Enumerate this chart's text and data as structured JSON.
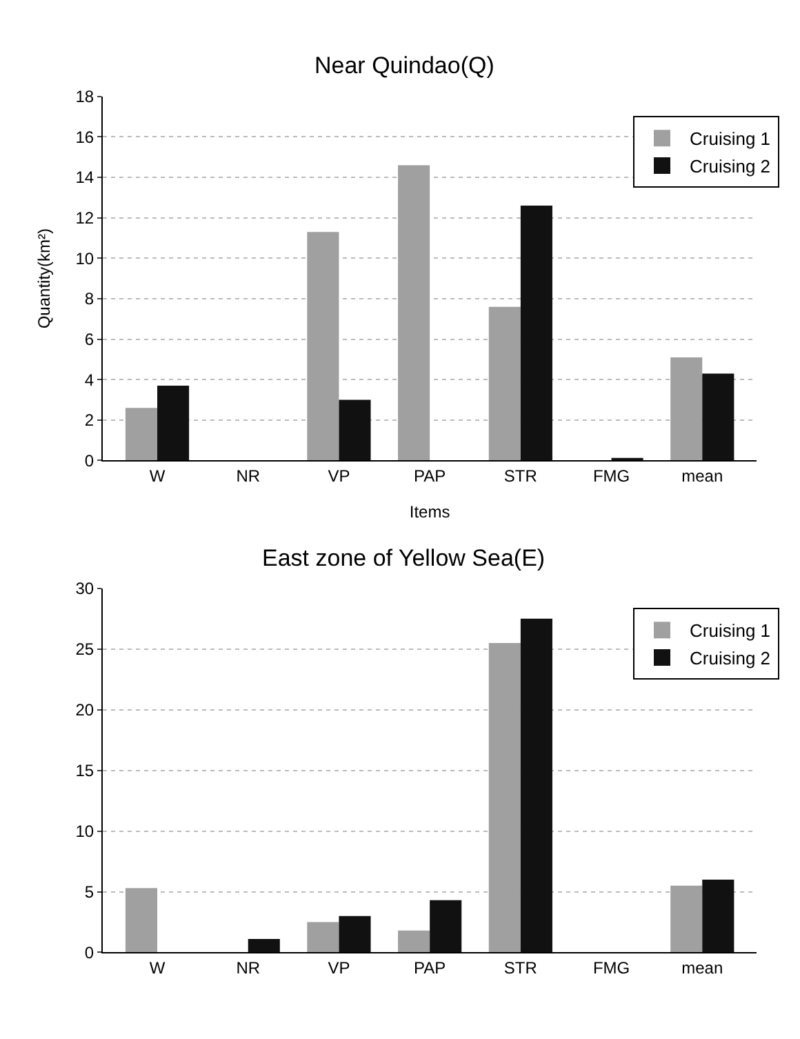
{
  "chart_data": [
    {
      "type": "bar",
      "title": "Near Quindao(Q)",
      "xlabel": "Items",
      "ylabel": "Quantity(km²)",
      "categories": [
        "W",
        "NR",
        "VP",
        "PAP",
        "STR",
        "FMG",
        "mean"
      ],
      "series": [
        {
          "name": "Cruising 1",
          "color": "#a0a0a0",
          "values": [
            2.6,
            0,
            11.3,
            14.6,
            7.6,
            0,
            5.1
          ]
        },
        {
          "name": "Cruising 2",
          "color": "#111111",
          "values": [
            3.7,
            0,
            3.0,
            0,
            12.6,
            0.1,
            4.3
          ]
        }
      ],
      "ylim": [
        0,
        18
      ],
      "yticks": [
        0,
        2,
        4,
        6,
        8,
        10,
        12,
        14,
        16,
        18
      ],
      "grid": "y",
      "legend": "top right"
    },
    {
      "type": "bar",
      "title": "East zone of Yellow Sea(E)",
      "categories": [
        "W",
        "NR",
        "VP",
        "PAP",
        "STR",
        "FMG",
        "mean"
      ],
      "series": [
        {
          "name": "Cruising 1",
          "color": "#a0a0a0",
          "values": [
            5.3,
            0,
            2.5,
            1.8,
            25.5,
            0,
            5.5
          ]
        },
        {
          "name": "Cruising 2",
          "color": "#111111",
          "values": [
            0,
            1.1,
            3.0,
            4.3,
            27.5,
            0,
            6.0
          ]
        }
      ],
      "ylim": [
        0,
        30
      ],
      "yticks": [
        0,
        5,
        10,
        15,
        20,
        25,
        30
      ],
      "grid": "y",
      "legend": "top right"
    }
  ]
}
